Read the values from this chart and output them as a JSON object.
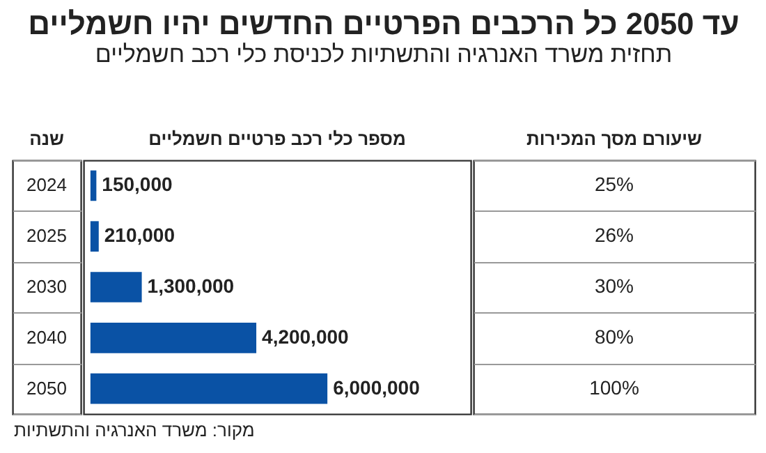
{
  "chart_data": {
    "type": "bar",
    "orientation": "horizontal",
    "title": "עד 2050 כל הרכבים הפרטיים החדשים יהיו חשמליים",
    "subtitle": "תחזית משרד האנרגיה והתשתיות לכניסת כלי רכב חשמליים",
    "xlabel": "מספר כלי רכב פרטיים חשמליים",
    "ylabel": "שנה",
    "categories": [
      "2024",
      "2025",
      "2030",
      "2040",
      "2050"
    ],
    "values": [
      150000,
      210000,
      1300000,
      4200000,
      6000000
    ],
    "color": "#0a52a5",
    "value_labels": [
      "150,000",
      "210,000",
      "1,300,000",
      "4,200,000",
      "6,000,000"
    ],
    "annotations": [
      "שיעורם מסך המכירות",
      "25%",
      "26%",
      "30%",
      "80%",
      "100%",
      "מקור: משרד האנרגיה והתשתיות"
    ]
  }
}
